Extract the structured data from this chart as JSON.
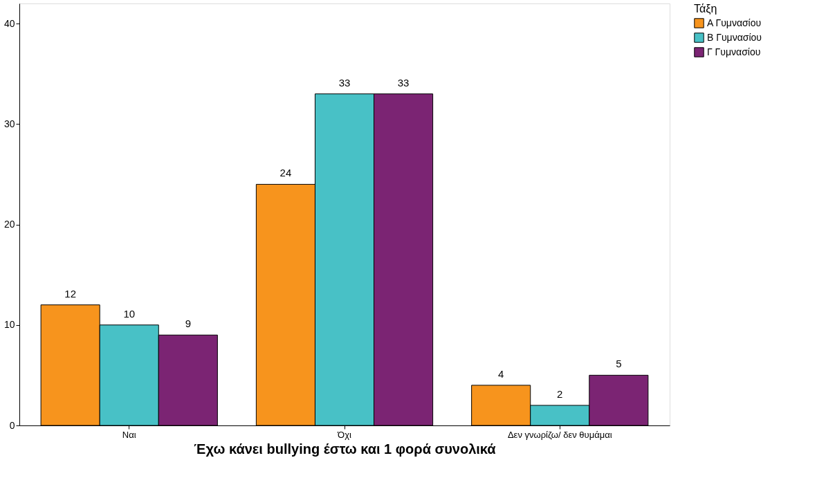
{
  "chart_data": {
    "type": "bar",
    "xlabel": "Έχω κάνει bullying έστω και 1 φορά συνολικά",
    "legend_title": "Τάξη",
    "categories": [
      "Ναι",
      "Όχι",
      "Δεν γνωρίζω/ δεν θυμάμαι"
    ],
    "series": [
      {
        "name": "Α Γυμνασίου",
        "color": "#f7941d",
        "values": [
          12,
          24,
          4
        ]
      },
      {
        "name": "Β Γυμνασίου",
        "color": "#48c1c6",
        "values": [
          10,
          33,
          2
        ]
      },
      {
        "name": "Γ Γυμνασίου",
        "color": "#7b2473",
        "values": [
          9,
          33,
          5
        ]
      }
    ],
    "ylim": [
      0,
      42
    ],
    "yticks": [
      0,
      10,
      20,
      30,
      40
    ],
    "grid": false,
    "legend": "top right",
    "data_labels": true
  }
}
